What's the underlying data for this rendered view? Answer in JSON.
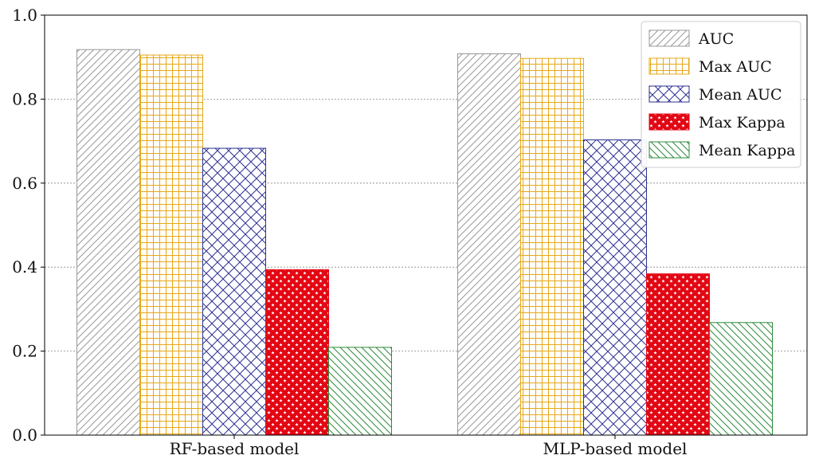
{
  "chart_data": {
    "type": "bar",
    "title": "",
    "xlabel": "",
    "ylabel": "",
    "categories": [
      "RF-based model",
      "MLP-based model"
    ],
    "ylim": [
      0.0,
      1.0
    ],
    "yticks": [
      0.0,
      0.2,
      0.4,
      0.6,
      0.8,
      1.0
    ],
    "ytick_labels": [
      "0.0",
      "0.2",
      "0.4",
      "0.6",
      "0.8",
      "1.0"
    ],
    "grid": "horizontal dotted",
    "legend_position": "top-right",
    "series": [
      {
        "name": "AUC",
        "values": [
          0.918,
          0.908
        ],
        "color": "#999999",
        "pattern": "diagonal-hatch"
      },
      {
        "name": "Max AUC",
        "values": [
          0.905,
          0.897
        ],
        "color": "#e6a817",
        "pattern": "grid"
      },
      {
        "name": "Mean AUC",
        "values": [
          0.683,
          0.703
        ],
        "color": "#2e3192",
        "pattern": "crosshatch"
      },
      {
        "name": "Max Kappa",
        "values": [
          0.394,
          0.384
        ],
        "color": "#e30613",
        "pattern": "stars"
      },
      {
        "name": "Mean Kappa",
        "values": [
          0.209,
          0.268
        ],
        "color": "#2e8b3a",
        "pattern": "back-diagonal-hatch"
      }
    ]
  }
}
